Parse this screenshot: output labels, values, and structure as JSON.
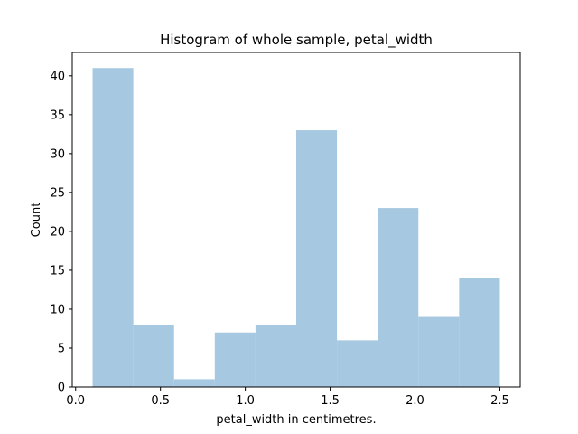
{
  "chart_data": {
    "type": "bar",
    "title": "Histogram of whole sample, petal_width",
    "xlabel": "petal_width in centimetres.",
    "ylabel": "Count",
    "bin_edges": [
      0.1,
      0.34,
      0.58,
      0.82,
      1.06,
      1.3,
      1.54,
      1.78,
      2.02,
      2.26,
      2.5
    ],
    "values": [
      41,
      8,
      1,
      7,
      8,
      33,
      6,
      23,
      9,
      14
    ],
    "xlim": [
      -0.02,
      2.62
    ],
    "ylim": [
      0,
      43
    ],
    "xticks": [
      0.0,
      0.5,
      1.0,
      1.5,
      2.0,
      2.5
    ],
    "xtick_labels": [
      "0.0",
      "0.5",
      "1.0",
      "1.5",
      "2.0",
      "2.5"
    ],
    "yticks": [
      0,
      5,
      10,
      15,
      20,
      25,
      30,
      35,
      40
    ],
    "ytick_labels": [
      "0",
      "5",
      "10",
      "15",
      "20",
      "25",
      "30",
      "35",
      "40"
    ],
    "bar_color": "#a6c8e0",
    "grid": false,
    "legend": "none"
  }
}
